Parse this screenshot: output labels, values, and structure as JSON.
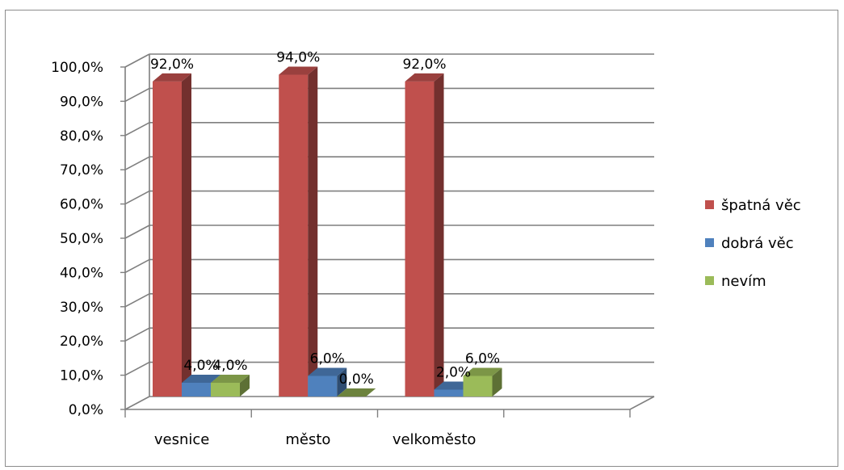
{
  "chart_data": {
    "type": "bar",
    "categories": [
      "vesnice",
      "město",
      "velkoměsto"
    ],
    "series": [
      {
        "name": "špatná věc",
        "values": [
          92.0,
          94.0,
          92.0
        ],
        "color": "#c0504d"
      },
      {
        "name": "dobrá věc",
        "values": [
          4.0,
          6.0,
          2.0
        ],
        "color": "#4f81bd"
      },
      {
        "name": "nevím",
        "values": [
          4.0,
          0.0,
          6.0
        ],
        "color": "#9bbb59"
      }
    ],
    "data_labels": [
      [
        "92,0%",
        "94,0%",
        "92,0%"
      ],
      [
        "4,0%",
        "6,0%",
        "2,0%"
      ],
      [
        "4,0%",
        "0,0%",
        "6,0%"
      ]
    ],
    "y_ticks": [
      0,
      10,
      20,
      30,
      40,
      50,
      60,
      70,
      80,
      90,
      100
    ],
    "y_tick_labels": [
      "0,0%",
      "10,0%",
      "20,0%",
      "30,0%",
      "40,0%",
      "50,0%",
      "60,0%",
      "70,0%",
      "80,0%",
      "90,0%",
      "100,0%"
    ],
    "ylim": [
      0,
      100
    ],
    "title": "",
    "xlabel": "",
    "ylabel": "",
    "grid": true,
    "legend_position": "right",
    "style": "3d-clustered-column"
  }
}
